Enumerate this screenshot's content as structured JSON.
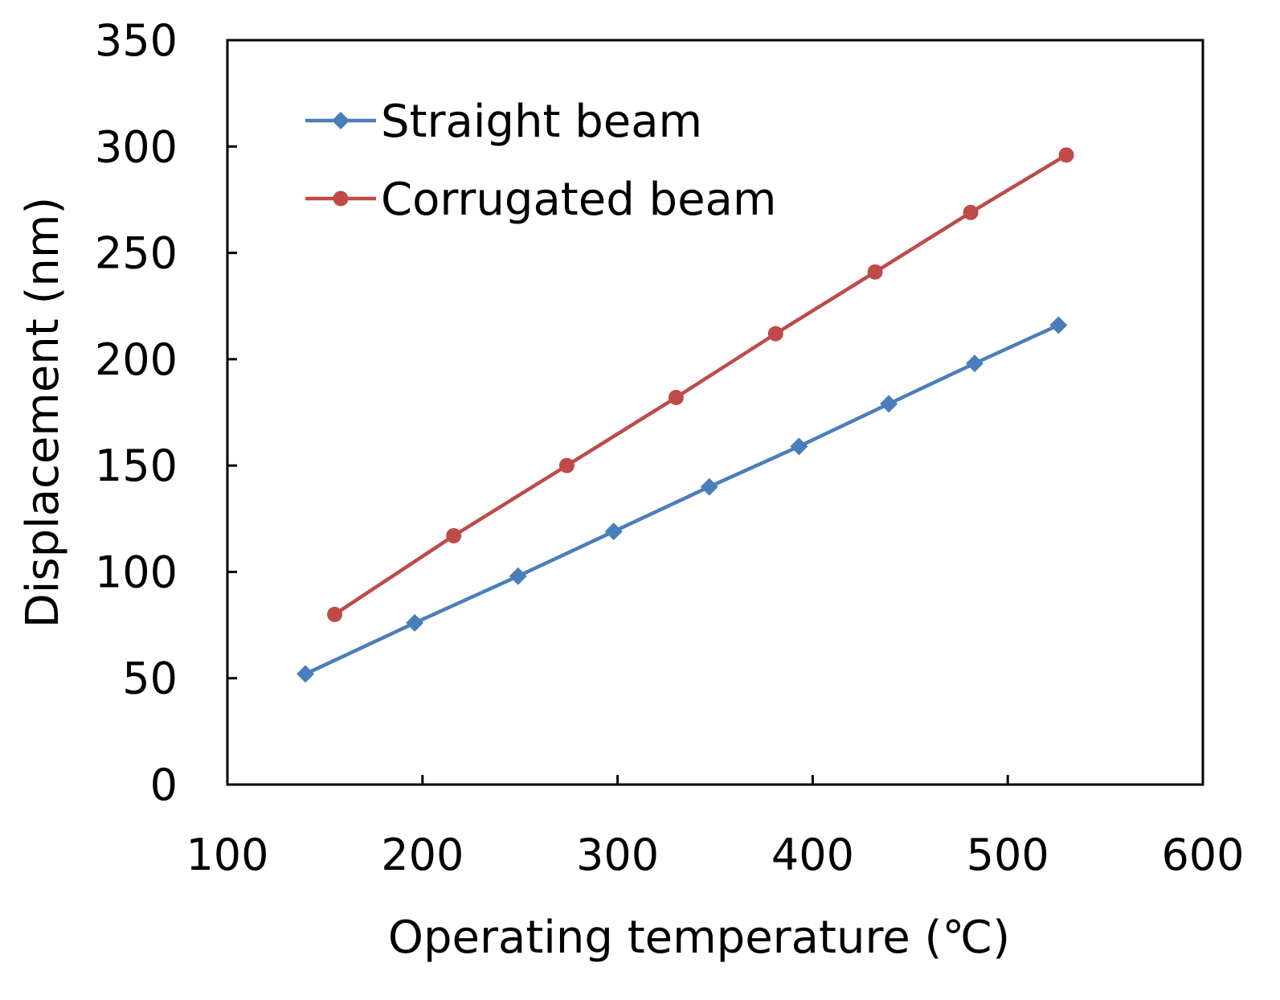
{
  "chart_data": {
    "type": "line",
    "title": "",
    "xlabel": "Operating temperature (℃)",
    "ylabel": "Displacement (nm)",
    "xlim": [
      100,
      600
    ],
    "ylim": [
      0,
      350
    ],
    "xticks": [
      "100",
      "200",
      "300",
      "400",
      "500",
      "600"
    ],
    "yticks": [
      "0",
      "50",
      "100",
      "150",
      "200",
      "250",
      "300",
      "350"
    ],
    "grid": false,
    "legend_position": "top-left",
    "series": [
      {
        "name": "Straight beam",
        "color": "#4a7ebb",
        "marker": "diamond",
        "x": [
          140,
          196,
          249,
          298,
          347,
          393,
          439,
          483,
          526
        ],
        "y": [
          52,
          76,
          98,
          119,
          140,
          159,
          179,
          198,
          216
        ]
      },
      {
        "name": "Corrugated beam",
        "color": "#be4b48",
        "marker": "circle",
        "x": [
          155,
          216,
          274,
          330,
          381,
          432,
          481,
          530
        ],
        "y": [
          80,
          117,
          150,
          182,
          212,
          241,
          269,
          296
        ]
      }
    ]
  }
}
